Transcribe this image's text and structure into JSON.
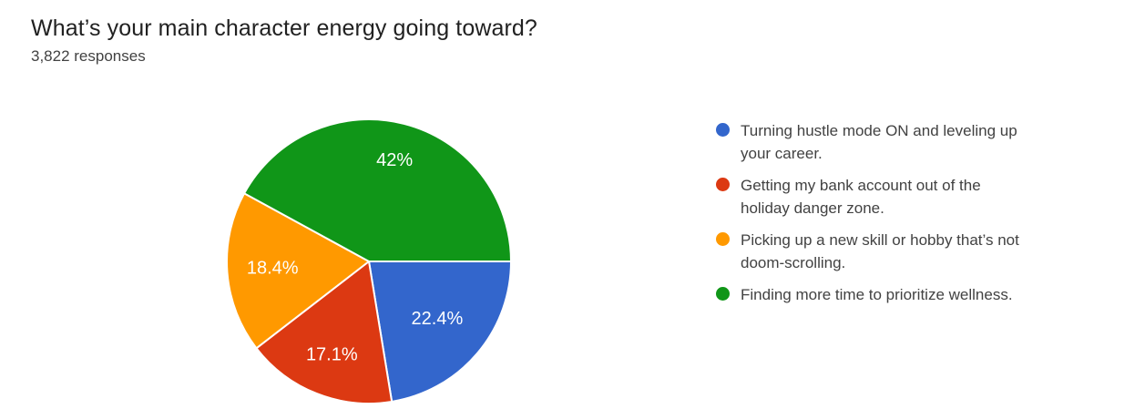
{
  "header": {
    "title": "What’s your main character energy going toward?",
    "subtitle": "3,822 responses"
  },
  "chart_data": {
    "type": "pie",
    "title": "What’s your main character energy going toward?",
    "subtitle": "3,822 responses",
    "categories": [
      "Turning hustle mode ON and leveling up your career.",
      "Getting my bank account out of the holiday danger zone.",
      "Picking up a new skill or hobby that’s not doom-scrolling.",
      "Finding more time to prioritize wellness."
    ],
    "values": [
      22.4,
      17.1,
      18.4,
      42
    ],
    "slice_labels": [
      "22.4%",
      "17.1%",
      "18.4%",
      "42%"
    ],
    "colors": [
      "#3366cc",
      "#dc3912",
      "#ff9900",
      "#109618"
    ],
    "slice_label_color": "#ffffff",
    "start_angle_deg": 0,
    "direction": "clockwise",
    "legend_position": "right",
    "grid": false
  },
  "legend": {
    "items": [
      {
        "label": "Turning hustle mode ON and leveling up your career.",
        "lines": [
          "Turning hustle mode ON and leveling up",
          "your career."
        ],
        "color": "#3366cc"
      },
      {
        "label": "Getting my bank account out of the holiday danger zone.",
        "lines": [
          "Getting my bank account out of the",
          "holiday danger zone."
        ],
        "color": "#dc3912"
      },
      {
        "label": "Picking up a new skill or hobby that’s not doom-scrolling.",
        "lines": [
          "Picking up a new skill or hobby that’s not",
          "doom-scrolling."
        ],
        "color": "#ff9900"
      },
      {
        "label": "Finding more time to prioritize wellness.",
        "lines": [
          "Finding more time to prioritize wellness."
        ],
        "color": "#109618"
      }
    ]
  }
}
